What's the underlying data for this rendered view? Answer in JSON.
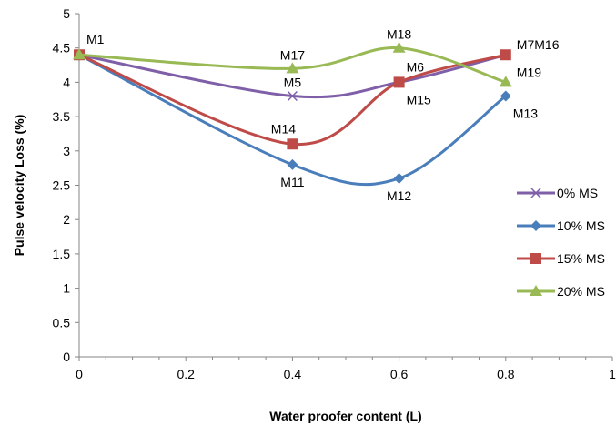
{
  "chart_data": {
    "type": "line",
    "xlabel": "Water proofer content (L)",
    "ylabel": "Pulse velocity Loss (%)",
    "xlim": [
      0,
      1
    ],
    "ylim": [
      0,
      5
    ],
    "x_ticks": [
      "0",
      "0.2",
      "0.4",
      "0.6",
      "0.8",
      "1"
    ],
    "y_ticks": [
      "0",
      "0.5",
      "1",
      "1.5",
      "2",
      "2.5",
      "3",
      "3.5",
      "4",
      "4.5",
      "5"
    ],
    "grid": false,
    "legend_position": "right",
    "series": [
      {
        "name": "0% MS",
        "color": "#7F5FA8",
        "marker": "x",
        "x": [
          0,
          0.4,
          0.6,
          0.8
        ],
        "y": [
          4.4,
          3.8,
          4.0,
          4.4
        ]
      },
      {
        "name": "10% MS",
        "color": "#4A7EBB",
        "marker": "diamond",
        "x": [
          0,
          0.4,
          0.6,
          0.8
        ],
        "y": [
          4.4,
          2.8,
          2.6,
          3.8
        ]
      },
      {
        "name": "15% MS",
        "color": "#BE4B48",
        "marker": "square",
        "x": [
          0,
          0.4,
          0.6,
          0.8
        ],
        "y": [
          4.4,
          3.1,
          4.0,
          4.4
        ]
      },
      {
        "name": "20% MS",
        "color": "#98B954",
        "marker": "triangle",
        "x": [
          0,
          0.4,
          0.6,
          0.8
        ],
        "y": [
          4.4,
          4.2,
          4.5,
          4.0
        ]
      }
    ],
    "annotations": [
      {
        "text": "M1",
        "x": 0,
        "y": 4.4,
        "anchor": "above-right"
      },
      {
        "text": "M5",
        "x": 0.4,
        "y": 3.8,
        "anchor": "above"
      },
      {
        "text": "M6",
        "x": 0.6,
        "y": 4.0,
        "anchor": "above-right"
      },
      {
        "text": "M7M16",
        "x": 0.8,
        "y": 4.4,
        "anchor": "right"
      },
      {
        "text": "M11",
        "x": 0.4,
        "y": 2.8,
        "anchor": "below"
      },
      {
        "text": "M12",
        "x": 0.6,
        "y": 2.6,
        "anchor": "below"
      },
      {
        "text": "M13",
        "x": 0.8,
        "y": 3.8,
        "anchor": "below-right"
      },
      {
        "text": "M14",
        "x": 0.4,
        "y": 3.1,
        "anchor": "above-left"
      },
      {
        "text": "M15",
        "x": 0.6,
        "y": 4.0,
        "anchor": "below-right"
      },
      {
        "text": "M17",
        "x": 0.4,
        "y": 4.2,
        "anchor": "above"
      },
      {
        "text": "M18",
        "x": 0.6,
        "y": 4.5,
        "anchor": "above"
      },
      {
        "text": "M19",
        "x": 0.8,
        "y": 4.0,
        "anchor": "right"
      }
    ]
  }
}
